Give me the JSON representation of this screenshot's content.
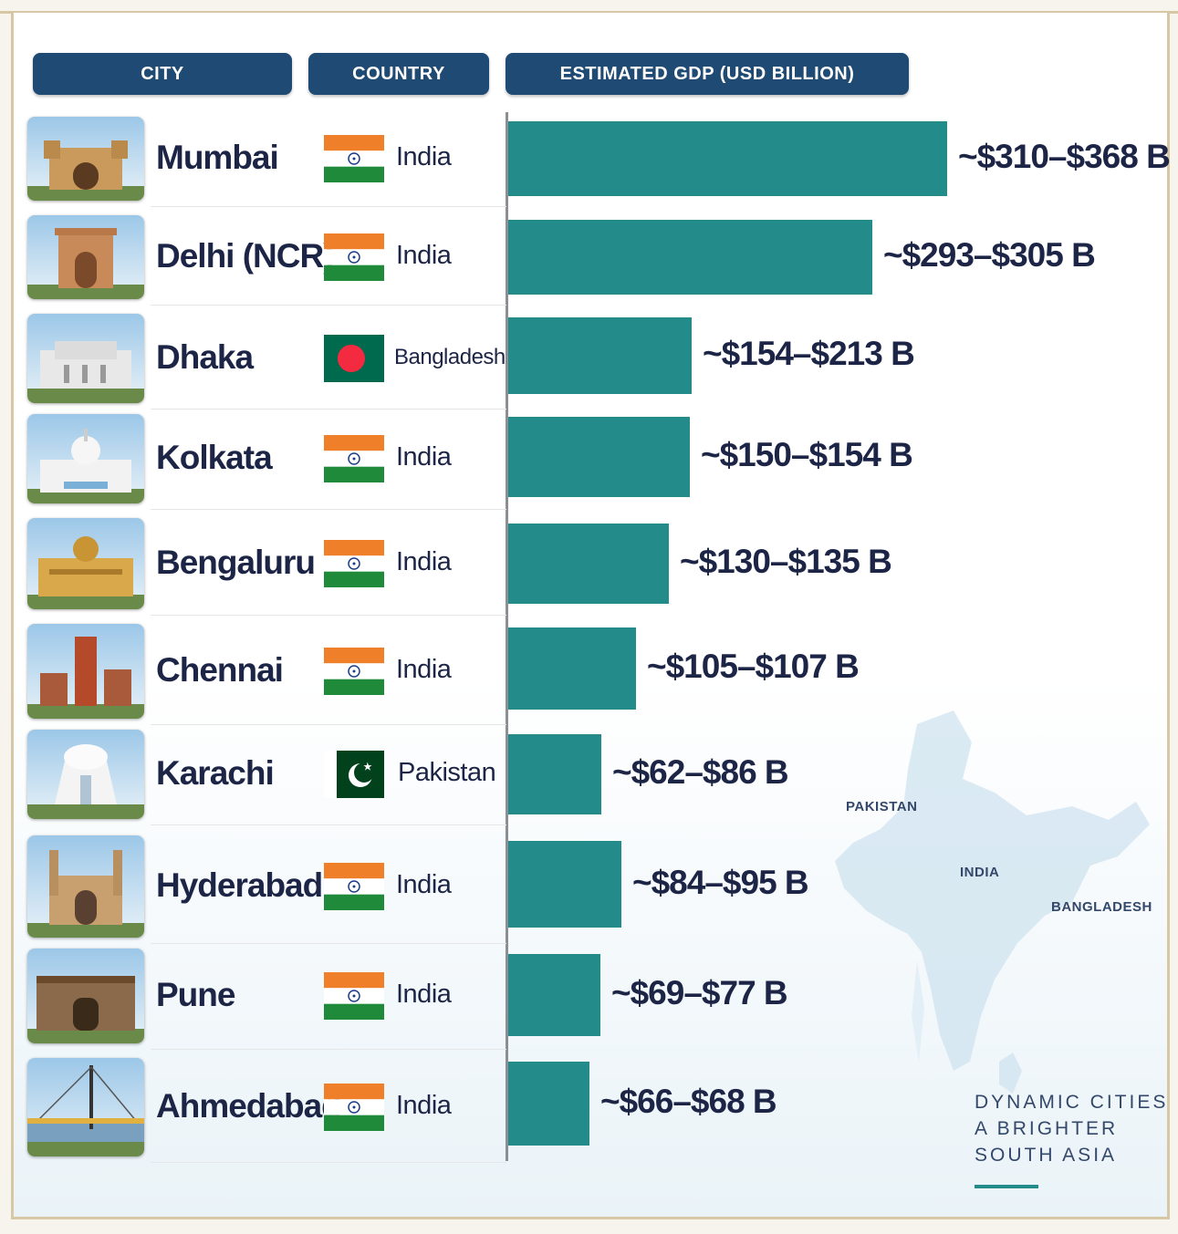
{
  "headers": {
    "city": "CITY",
    "country": "COUNTRY",
    "gdp": "ESTIMATED GDP (USD BILLION)"
  },
  "rows": [
    {
      "city": "Mumbai",
      "country": "India",
      "flag": "india-flag-icon",
      "landmark": "gateway-of-india-icon",
      "label": "~$310–$368 B"
    },
    {
      "city": "Delhi (NCR)",
      "country": "India",
      "flag": "india-flag-icon",
      "landmark": "india-gate-icon",
      "label": "~$293–$305 B"
    },
    {
      "city": "Dhaka",
      "country": "Bangladesh",
      "flag": "bangladesh-flag-icon",
      "landmark": "parliament-building-icon",
      "label": "~$154–$213 B"
    },
    {
      "city": "Kolkata",
      "country": "India",
      "flag": "india-flag-icon",
      "landmark": "victoria-memorial-icon",
      "label": "~$150–$154 B"
    },
    {
      "city": "Bengaluru",
      "country": "India",
      "flag": "india-flag-icon",
      "landmark": "vidhana-soudha-icon",
      "label": "~$130–$135 B"
    },
    {
      "city": "Chennai",
      "country": "India",
      "flag": "india-flag-icon",
      "landmark": "temple-tower-icon",
      "label": "~$105–$107 B"
    },
    {
      "city": "Karachi",
      "country": "Pakistan",
      "flag": "pakistan-flag-icon",
      "landmark": "mazar-e-quaid-icon",
      "label": "~$62–$86 B"
    },
    {
      "city": "Hyderabad",
      "country": "India",
      "flag": "india-flag-icon",
      "landmark": "charminar-icon",
      "label": "~$84–$95 B"
    },
    {
      "city": "Pune",
      "country": "India",
      "flag": "india-flag-icon",
      "landmark": "shaniwar-wada-icon",
      "label": "~$69–$77 B"
    },
    {
      "city": "Ahmedabad",
      "country": "India",
      "flag": "india-flag-icon",
      "landmark": "cable-bridge-icon",
      "label": "~$66–$68 B"
    }
  ],
  "map": {
    "labels": [
      "PAKISTAN",
      "INDIA",
      "BANGLADESH"
    ]
  },
  "tagline": [
    "DYNAMIC CITIES",
    "A BRIGHTER",
    "SOUTH ASIA"
  ],
  "colors": {
    "header": "#1e4a73",
    "bar": "#238b8a",
    "text": "#1d2547",
    "saffron": "#f07f2a",
    "green_india": "#1e8a3a",
    "bangladesh_green": "#006a4e",
    "bangladesh_red": "#f42a41",
    "pakistan_green": "#01411c"
  },
  "chart_data": {
    "type": "bar",
    "orientation": "horizontal",
    "categories": [
      "Mumbai",
      "Delhi (NCR)",
      "Dhaka",
      "Kolkata",
      "Bengaluru",
      "Chennai",
      "Karachi",
      "Hyderabad",
      "Pune",
      "Ahmedabad"
    ],
    "values": [
      368,
      305,
      154,
      152,
      135,
      107,
      78,
      95,
      77,
      68
    ],
    "ranges": [
      [
        310,
        368
      ],
      [
        293,
        305
      ],
      [
        154,
        213
      ],
      [
        150,
        154
      ],
      [
        130,
        135
      ],
      [
        105,
        107
      ],
      [
        62,
        86
      ],
      [
        84,
        95
      ],
      [
        69,
        77
      ],
      [
        66,
        68
      ]
    ],
    "title": "",
    "xlabel": "ESTIMATED GDP (USD BILLION)",
    "ylabel": "",
    "xlim": [
      0,
      368
    ],
    "grid": false,
    "legend": "none"
  }
}
